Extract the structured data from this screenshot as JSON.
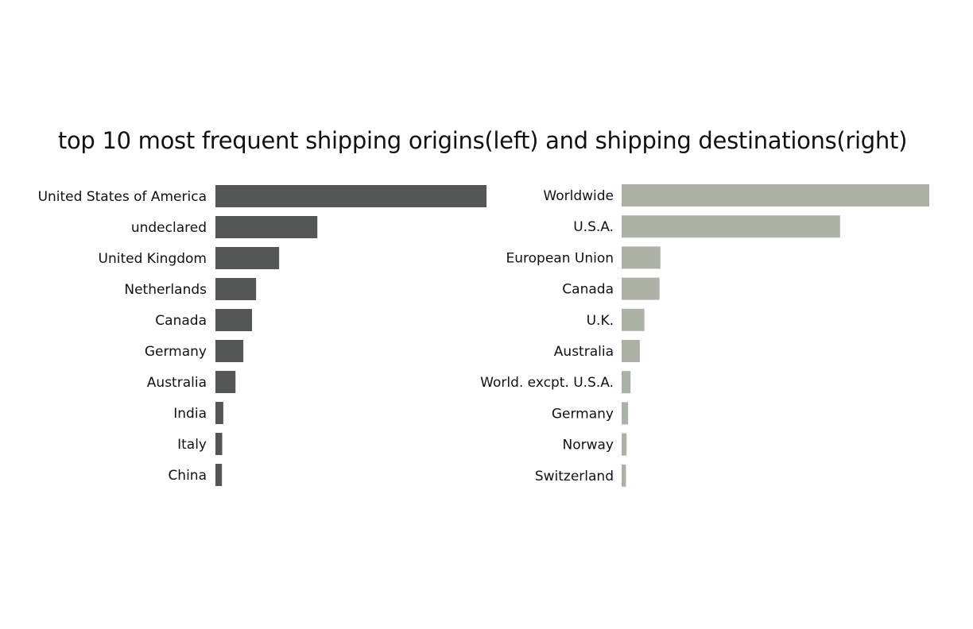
{
  "title": "top 10 most frequent shipping origins(left) and shipping destinations(right)",
  "colors": {
    "origins": "#545555",
    "destinations": "#abb1a4"
  },
  "chart_data": [
    {
      "type": "bar",
      "orientation": "horizontal",
      "name": "origins",
      "categories": [
        "United States of America",
        "undeclared",
        "United Kingdom",
        "Netherlands",
        "Canada",
        "Germany",
        "Australia",
        "India",
        "Italy",
        "China"
      ],
      "values": [
        100,
        37.6,
        23.5,
        15,
        13.5,
        10.3,
        7.4,
        2.9,
        2.5,
        2.4
      ],
      "xlim": [
        0,
        100
      ]
    },
    {
      "type": "bar",
      "orientation": "horizontal",
      "name": "destinations",
      "categories": [
        "Worldwide",
        "U.S.A.",
        "European Union",
        "Canada",
        "U.K.",
        "Australia",
        "World. excpt. U.S.A.",
        "Germany",
        "Norway",
        "Switzerland"
      ],
      "values": [
        100,
        71,
        12.6,
        12.3,
        7.4,
        5.9,
        2.9,
        2.1,
        1.6,
        1.4
      ],
      "xlim": [
        0,
        100
      ]
    }
  ]
}
